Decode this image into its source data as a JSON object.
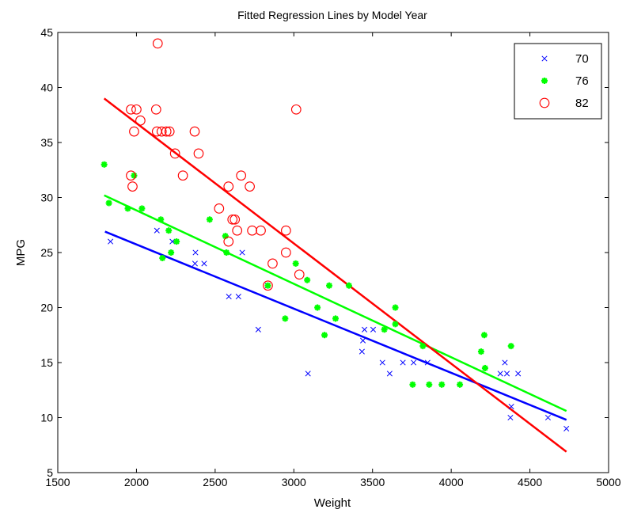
{
  "chart_data": {
    "type": "scatter",
    "title": "Fitted Regression Lines by Model Year",
    "xlabel": "Weight",
    "ylabel": "MPG",
    "xlim": [
      1500,
      5000
    ],
    "ylim": [
      5,
      45
    ],
    "xticks": [
      1500,
      2000,
      2500,
      3000,
      3500,
      4000,
      4500,
      5000
    ],
    "yticks": [
      5,
      10,
      15,
      20,
      25,
      30,
      35,
      40,
      45
    ],
    "grid": false,
    "legend_position": "top-right",
    "series": [
      {
        "name": "70",
        "marker": "x",
        "color": "#0000ff",
        "points": [
          [
            1835,
            26
          ],
          [
            2130,
            27
          ],
          [
            2228,
            26
          ],
          [
            2372,
            24
          ],
          [
            2375,
            25
          ],
          [
            2430,
            24
          ],
          [
            2587,
            21
          ],
          [
            2648,
            21
          ],
          [
            2672,
            25
          ],
          [
            2774,
            18
          ],
          [
            2833,
            22
          ],
          [
            3090,
            14
          ],
          [
            3433,
            16
          ],
          [
            3439,
            17
          ],
          [
            3449,
            18
          ],
          [
            3504,
            18
          ],
          [
            3563,
            15
          ],
          [
            3609,
            14
          ],
          [
            3693,
            15
          ],
          [
            3761,
            15
          ],
          [
            3850,
            15
          ],
          [
            4312,
            14
          ],
          [
            4341,
            15
          ],
          [
            4354,
            14
          ],
          [
            4376,
            10
          ],
          [
            4382,
            11
          ],
          [
            4425,
            14
          ],
          [
            4615,
            10
          ],
          [
            4732,
            9
          ]
        ],
        "fit": [
          [
            1800,
            26.9
          ],
          [
            4732,
            9.8
          ]
        ]
      },
      {
        "name": "76",
        "marker": "*",
        "color": "#00ff00",
        "points": [
          [
            1795,
            33
          ],
          [
            1825,
            29.5
          ],
          [
            1945,
            29
          ],
          [
            1985,
            32
          ],
          [
            2035,
            29
          ],
          [
            2155,
            28
          ],
          [
            2165,
            24.5
          ],
          [
            2205,
            27
          ],
          [
            2220,
            25
          ],
          [
            2255,
            26
          ],
          [
            2465,
            28
          ],
          [
            2565,
            26.5
          ],
          [
            2572,
            25
          ],
          [
            2835,
            22
          ],
          [
            2945,
            19
          ],
          [
            3012,
            24
          ],
          [
            3085,
            22.5
          ],
          [
            3150,
            20
          ],
          [
            3195,
            17.5
          ],
          [
            3225,
            22
          ],
          [
            3265,
            19
          ],
          [
            3350,
            22
          ],
          [
            3575,
            18
          ],
          [
            3645,
            20
          ],
          [
            3645,
            18.5
          ],
          [
            3755,
            13
          ],
          [
            3820,
            16.5
          ],
          [
            3860,
            13
          ],
          [
            3940,
            13
          ],
          [
            4055,
            13
          ],
          [
            4190,
            16
          ],
          [
            4210,
            17.5
          ],
          [
            4215,
            14.5
          ],
          [
            4380,
            16.5
          ]
        ],
        "fit": [
          [
            1795,
            30.2
          ],
          [
            4732,
            10.6
          ]
        ]
      },
      {
        "name": "82",
        "marker": "o",
        "color": "#ff0000",
        "points": [
          [
            1965,
            38
          ],
          [
            1965,
            32
          ],
          [
            1975,
            31
          ],
          [
            1985,
            36
          ],
          [
            2000,
            38
          ],
          [
            2025,
            37
          ],
          [
            2125,
            38
          ],
          [
            2130,
            36
          ],
          [
            2135,
            44
          ],
          [
            2160,
            36
          ],
          [
            2190,
            36
          ],
          [
            2210,
            36
          ],
          [
            2245,
            34
          ],
          [
            2295,
            32
          ],
          [
            2370,
            36
          ],
          [
            2395,
            34
          ],
          [
            2525,
            29
          ],
          [
            2585,
            31
          ],
          [
            2585,
            26
          ],
          [
            2610,
            28
          ],
          [
            2625,
            28
          ],
          [
            2640,
            27
          ],
          [
            2665,
            32
          ],
          [
            2720,
            31
          ],
          [
            2735,
            27
          ],
          [
            2790,
            27
          ],
          [
            2835,
            22
          ],
          [
            2865,
            24
          ],
          [
            2950,
            27
          ],
          [
            2950,
            25
          ],
          [
            3015,
            38
          ],
          [
            3035,
            23
          ]
        ],
        "fit": [
          [
            1795,
            39
          ],
          [
            4732,
            6.9
          ]
        ]
      }
    ]
  }
}
